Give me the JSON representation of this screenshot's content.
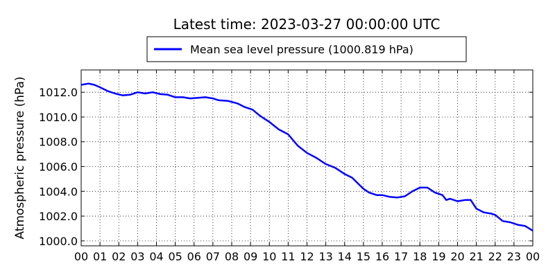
{
  "chart_data": {
    "type": "line",
    "title": "Latest time: 2023-03-27 00:00:00 UTC",
    "xlabel": "",
    "ylabel": "Atmospheric pressure (hPa)",
    "xlim": [
      0,
      24
    ],
    "ylim": [
      999.6,
      1013.8
    ],
    "grid": true,
    "legend_position": "top-center",
    "x_tick_labels": [
      "00",
      "01",
      "02",
      "03",
      "04",
      "05",
      "06",
      "07",
      "08",
      "09",
      "10",
      "11",
      "12",
      "13",
      "14",
      "15",
      "16",
      "17",
      "18",
      "19",
      "20",
      "21",
      "22",
      "23",
      "00"
    ],
    "y_ticks": [
      1000.0,
      1002.0,
      1004.0,
      1006.0,
      1008.0,
      1010.0,
      1012.0
    ],
    "y_tick_labels": [
      "1000.0",
      "1002.0",
      "1004.0",
      "1006.0",
      "1008.0",
      "1010.0",
      "1012.0"
    ],
    "series": [
      {
        "name": "Mean sea level pressure (1000.819 hPa)",
        "color": "#0000ff",
        "x": [
          0,
          0.4,
          0.7,
          1.0,
          1.4,
          1.8,
          2.2,
          2.6,
          3.0,
          3.4,
          3.8,
          4.2,
          4.6,
          5.0,
          5.4,
          5.8,
          6.2,
          6.6,
          7.0,
          7.3,
          7.8,
          8.3,
          8.7,
          9.1,
          9.5,
          10.0,
          10.5,
          11.0,
          11.5,
          12.0,
          12.5,
          13.0,
          13.5,
          14.0,
          14.4,
          14.8,
          15.0,
          15.3,
          15.7,
          16.0,
          16.4,
          16.8,
          17.2,
          17.6,
          18.0,
          18.4,
          18.8,
          19.2,
          19.4,
          19.6,
          20.0,
          20.4,
          20.7,
          21.0,
          21.4,
          21.8,
          22.0,
          22.4,
          22.8,
          23.2,
          23.6,
          24.0
        ],
        "y": [
          1012.6,
          1012.7,
          1012.6,
          1012.4,
          1012.1,
          1011.9,
          1011.75,
          1011.8,
          1012.0,
          1011.9,
          1012.0,
          1011.85,
          1011.8,
          1011.6,
          1011.6,
          1011.5,
          1011.55,
          1011.6,
          1011.5,
          1011.35,
          1011.3,
          1011.1,
          1010.8,
          1010.6,
          1010.1,
          1009.6,
          1009.0,
          1008.6,
          1007.7,
          1007.1,
          1006.7,
          1006.2,
          1005.9,
          1005.4,
          1005.1,
          1004.5,
          1004.2,
          1003.9,
          1003.7,
          1003.7,
          1003.55,
          1003.5,
          1003.6,
          1004.0,
          1004.3,
          1004.3,
          1003.9,
          1003.7,
          1003.3,
          1003.4,
          1003.2,
          1003.3,
          1003.3,
          1002.6,
          1002.3,
          1002.2,
          1002.1,
          1001.6,
          1001.5,
          1001.3,
          1001.2,
          1000.819
        ]
      }
    ]
  }
}
